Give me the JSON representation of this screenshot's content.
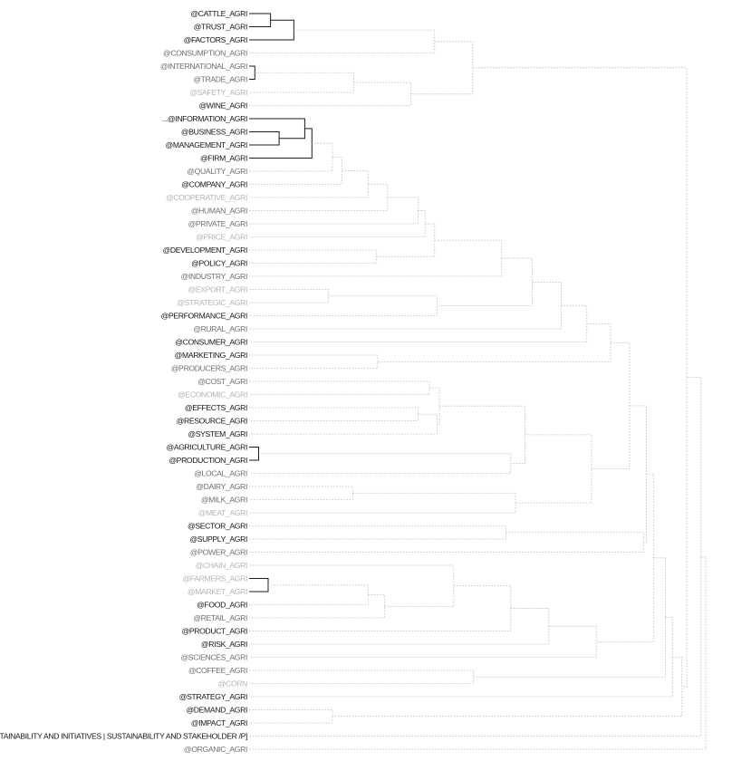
{
  "leaves": [
    {
      "label": "@CATTLE_AGRI",
      "tone": "dark"
    },
    {
      "label": "@TRUST_AGRI",
      "tone": "dark"
    },
    {
      "label": "@FACTORS_AGRI",
      "tone": "dark"
    },
    {
      "label": "@CONSUMPTION_AGRI",
      "tone": "mid"
    },
    {
      "label": "@INTERNATIONAL_AGRI",
      "tone": "mid"
    },
    {
      "label": "@TRADE_AGRI",
      "tone": "mid"
    },
    {
      "label": "@SAFETY_AGRI",
      "tone": "light"
    },
    {
      "label": "@WINE_AGRI",
      "tone": "dark"
    },
    {
      "label": "...@INFORMATION_AGRI",
      "tone": "dark"
    },
    {
      "label": "@BUSINESS_AGRI",
      "tone": "dark"
    },
    {
      "label": "@MANAGEMENT_AGRI",
      "tone": "dark"
    },
    {
      "label": "@FIRM_AGRI",
      "tone": "dark"
    },
    {
      "label": "@QUALITY_AGRI",
      "tone": "mid"
    },
    {
      "label": "@COMPANY_AGRI",
      "tone": "dark"
    },
    {
      "label": "@COOPERATIVE_AGRI",
      "tone": "light"
    },
    {
      "label": "@HUMAN_AGRI",
      "tone": "mid"
    },
    {
      "label": "@PRIVATE_AGRI",
      "tone": "mid"
    },
    {
      "label": "@PRICE_AGRI",
      "tone": "light"
    },
    {
      "label": "@DEVELOPMENT_AGRI",
      "tone": "dark"
    },
    {
      "label": "@POLICY_AGRI",
      "tone": "dark"
    },
    {
      "label": "@INDUSTRY_AGRI",
      "tone": "mid"
    },
    {
      "label": "@EXPORT_AGRI",
      "tone": "light"
    },
    {
      "label": "@STRATEGIC_AGRI",
      "tone": "light"
    },
    {
      "label": "@PERFORMANCE_AGRI",
      "tone": "dark"
    },
    {
      "label": "@RURAL_AGRI",
      "tone": "mid"
    },
    {
      "label": "@CONSUMER_AGRI",
      "tone": "dark"
    },
    {
      "label": "@MARKETING_AGRI",
      "tone": "dark"
    },
    {
      "label": "@PRODUCERS_AGRI",
      "tone": "mid"
    },
    {
      "label": "@COST_AGRI",
      "tone": "mid"
    },
    {
      "label": "@ECONOMIC_AGRI",
      "tone": "light"
    },
    {
      "label": "@EFFECTS_AGRI",
      "tone": "dark"
    },
    {
      "label": "@RESOURCE_AGRI",
      "tone": "dark"
    },
    {
      "label": "@SYSTEM_AGRI",
      "tone": "dark"
    },
    {
      "label": "@AGRICULTURE_AGRI",
      "tone": "dark"
    },
    {
      "label": "@PRODUCTION_AGRI",
      "tone": "dark"
    },
    {
      "label": "@LOCAL_AGRI",
      "tone": "mid"
    },
    {
      "label": "@DAIRY_AGRI",
      "tone": "mid"
    },
    {
      "label": "@MILK_AGRI",
      "tone": "mid"
    },
    {
      "label": "@MEAT_AGRI",
      "tone": "light"
    },
    {
      "label": "@SECTOR_AGRI",
      "tone": "dark"
    },
    {
      "label": "@SUPPLY_AGRI",
      "tone": "dark"
    },
    {
      "label": "@POWER_AGRI",
      "tone": "mid"
    },
    {
      "label": "@CHAIN_AGRI",
      "tone": "light"
    },
    {
      "label": "@FARMERS_AGRI",
      "tone": "light"
    },
    {
      "label": "@MARKET_AGRI",
      "tone": "light"
    },
    {
      "label": "@FOOD_AGRI",
      "tone": "dark"
    },
    {
      "label": "@RETAIL_AGRI",
      "tone": "mid"
    },
    {
      "label": "@PRODUCT_AGRI",
      "tone": "dark"
    },
    {
      "label": "@RISK_AGRI",
      "tone": "dark"
    },
    {
      "label": "@SCIENCES_AGRI",
      "tone": "mid"
    },
    {
      "label": "@COFFEE_AGRI",
      "tone": "mid"
    },
    {
      "label": "@CORN",
      "tone": "light"
    },
    {
      "label": "@STRATEGY_AGRI",
      "tone": "dark"
    },
    {
      "label": "@DEMAND_AGRI",
      "tone": "dark"
    },
    {
      "label": "@IMPACT_AGRI",
      "tone": "dark"
    },
    {
      "label": "[SUSTAINABILITY AND INITIATIVES | SUSTAINABILITY AND STAKEHOLDER /P]",
      "tone": "dark"
    },
    {
      "label": "@ORGANIC_AGRI",
      "tone": "mid"
    }
  ],
  "merges": [
    {
      "a": "L0",
      "b": "L1",
      "h": 0.045,
      "strong": true
    },
    {
      "a": "N0",
      "b": "L2",
      "h": 0.094,
      "strong": true
    },
    {
      "a": "L4",
      "b": "L5",
      "h": 0.012,
      "strong": true
    },
    {
      "a": "N2",
      "b": "L6",
      "h": 0.22
    },
    {
      "a": "N3",
      "b": "L7",
      "h": 0.34
    },
    {
      "a": "L9",
      "b": "L10",
      "h": 0.063,
      "strong": true
    },
    {
      "a": "L8",
      "b": "N5",
      "h": 0.117,
      "strong": true
    },
    {
      "a": "N6",
      "b": "L11",
      "h": 0.132,
      "strong": true
    },
    {
      "a": "N7",
      "b": "L12",
      "h": 0.175
    },
    {
      "a": "N8",
      "b": "L13",
      "h": 0.195
    },
    {
      "a": "N9",
      "b": "L14",
      "h": 0.25
    },
    {
      "a": "N10",
      "b": "L15",
      "h": 0.291
    },
    {
      "a": "N11",
      "b": "L16",
      "h": 0.355
    },
    {
      "a": "L18",
      "b": "L19",
      "h": 0.268
    },
    {
      "a": "N12",
      "b": "L17",
      "h": 0.37
    },
    {
      "a": "N14",
      "b": "N13",
      "h": 0.39
    },
    {
      "a": "L21",
      "b": "L22",
      "h": 0.167
    },
    {
      "a": "N16",
      "b": "L23",
      "h": 0.395
    },
    {
      "a": "N15",
      "b": "L20",
      "h": 0.53
    },
    {
      "a": "N18",
      "b": "N17",
      "h": 0.595
    },
    {
      "a": "N19",
      "b": "L24",
      "h": 0.656
    },
    {
      "a": "N20",
      "b": "L25",
      "h": 0.71
    },
    {
      "a": "L26",
      "b": "L27",
      "h": 0.27
    },
    {
      "a": "N21",
      "b": "N22",
      "h": 0.76
    },
    {
      "a": "L28",
      "b": "L29",
      "h": 0.379
    },
    {
      "a": "L30",
      "b": "L31",
      "h": 0.355
    },
    {
      "a": "N25",
      "b": "L32",
      "h": 0.395
    },
    {
      "a": "N24",
      "b": "N26",
      "h": 0.4
    },
    {
      "a": "L33",
      "b": "L34",
      "h": 0.02,
      "strong": true
    },
    {
      "a": "N28",
      "b": "L35",
      "h": 0.55
    },
    {
      "a": "N27",
      "b": "N29",
      "h": 0.58
    },
    {
      "a": "L36",
      "b": "L37",
      "h": 0.218
    },
    {
      "a": "N31",
      "b": "L38",
      "h": 0.56
    },
    {
      "a": "N30",
      "b": "N32",
      "h": 0.72
    },
    {
      "a": "N23",
      "b": "N33",
      "h": 0.8
    },
    {
      "a": "L39",
      "b": "L40",
      "h": 0.54
    },
    {
      "a": "N35",
      "b": "L41",
      "h": 0.83
    },
    {
      "a": "N34",
      "b": "N36",
      "h": 0.835
    },
    {
      "a": "L43",
      "b": "L44",
      "h": 0.04,
      "strong": true
    },
    {
      "a": "N38",
      "b": "L45",
      "h": 0.25
    },
    {
      "a": "N39",
      "b": "L46",
      "h": 0.285
    },
    {
      "a": "L42",
      "b": "N40",
      "h": 0.43
    },
    {
      "a": "N41",
      "b": "L47",
      "h": 0.55
    },
    {
      "a": "N42",
      "b": "L48",
      "h": 0.63
    },
    {
      "a": "N43",
      "b": "L49",
      "h": 0.73
    },
    {
      "a": "N37",
      "b": "N44",
      "h": 0.85
    },
    {
      "a": "L50",
      "b": "L51",
      "h": 0.472
    },
    {
      "a": "N45",
      "b": "N46",
      "h": 0.875
    },
    {
      "a": "N47",
      "b": "L52",
      "h": 0.89
    },
    {
      "a": "L53",
      "b": "L54",
      "h": 0.175
    },
    {
      "a": "N48",
      "b": "N49",
      "h": 0.91
    },
    {
      "a": "N1",
      "b": "L3",
      "h": 0.39
    },
    {
      "a": "N51",
      "b": "N4",
      "h": 0.47
    },
    {
      "a": "N52",
      "b": "N50",
      "h": 0.92
    },
    {
      "a": "N53",
      "b": "L55",
      "h": 0.95
    },
    {
      "a": "N54",
      "b": "L56",
      "h": 0.96
    }
  ]
}
